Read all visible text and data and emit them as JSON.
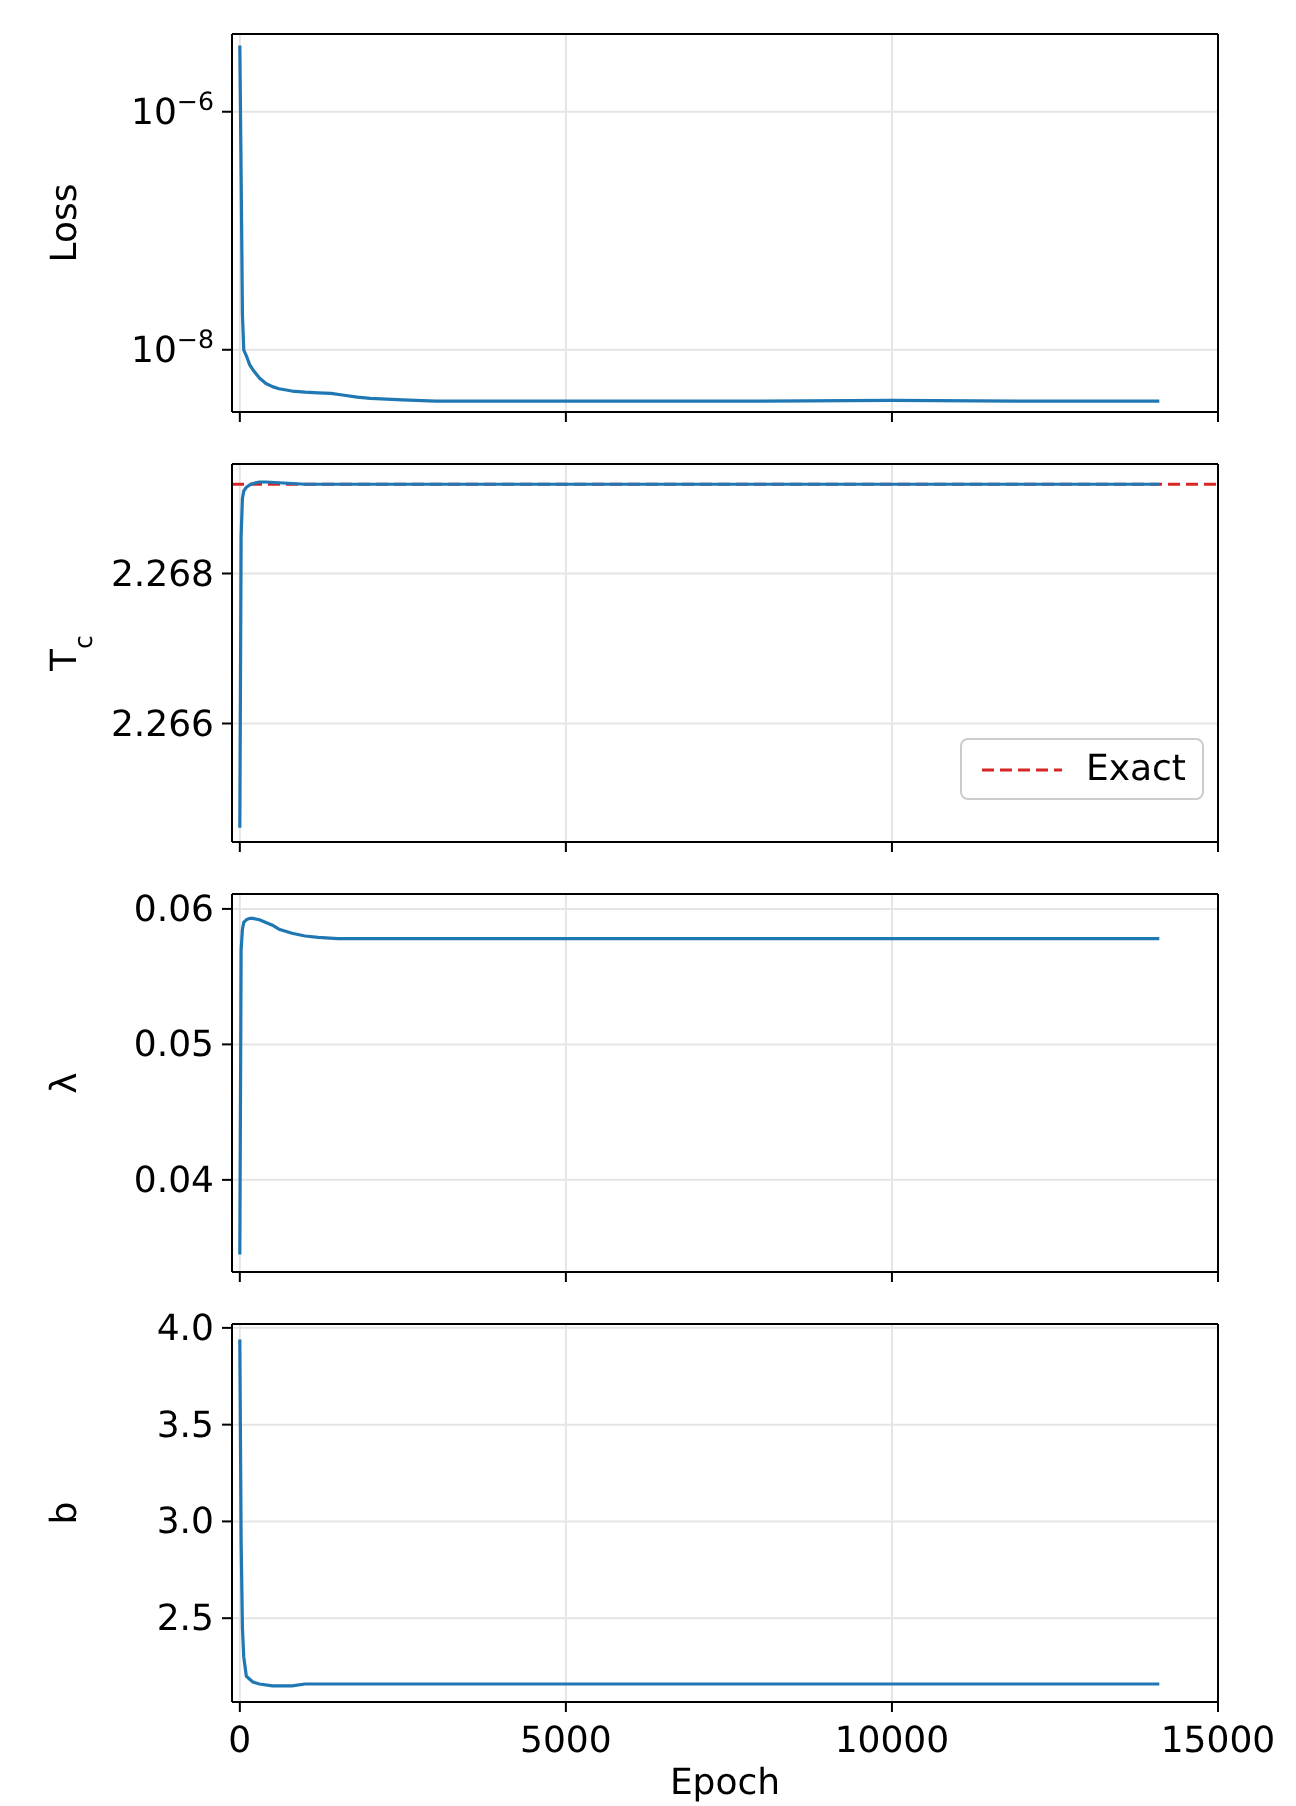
{
  "chart_data": [
    {
      "type": "line",
      "ylabel": "Loss",
      "log": "y",
      "grid": true,
      "tick_labels": "y",
      "xlim": [
        -120,
        15000
      ],
      "xticks": [
        0,
        5000,
        10000,
        15000
      ],
      "ylim": [
        3e-09,
        4.5e-06
      ],
      "yticks": [
        {
          "value": 1e-06,
          "label": "10$^{−6}$"
        },
        {
          "value": 1e-08,
          "label": "10$^{−8}$"
        }
      ],
      "series": [
        {
          "color": "#1f77b4",
          "x": [
            0,
            20,
            40,
            60,
            100,
            150,
            200,
            300,
            400,
            500,
            600,
            800,
            1000,
            1200,
            1400,
            1600,
            1800,
            2000,
            2500,
            3000,
            4000,
            6000,
            8000,
            10000,
            12000,
            14100
          ],
          "values": [
            3.6e-06,
            3e-07,
            2e-08,
            1e-08,
            8.9e-09,
            7.5e-09,
            6.8e-09,
            5.8e-09,
            5.2e-09,
            4.9e-09,
            4.7e-09,
            4.5e-09,
            4.4e-09,
            4.35e-09,
            4.3e-09,
            4.15e-09,
            4e-09,
            3.9e-09,
            3.8e-09,
            3.7e-09,
            3.7e-09,
            3.7e-09,
            3.7e-09,
            3.75e-09,
            3.7e-09,
            3.7e-09
          ]
        }
      ]
    },
    {
      "type": "line",
      "ylabel": "T$_{c}$",
      "grid": true,
      "tick_labels": "y",
      "legend": "bottom right",
      "xlim": [
        -120,
        15000
      ],
      "xticks": [
        0,
        5000,
        10000,
        15000
      ],
      "ylim": [
        2.26442,
        2.26946
      ],
      "yticks": [
        2.266,
        2.268
      ],
      "series": [
        {
          "color": "#1f77b4",
          "x": [
            0,
            20,
            40,
            60,
            100,
            150,
            200,
            300,
            400,
            600,
            800,
            1000,
            2000,
            4000,
            6000,
            8000,
            10000,
            12000,
            14100
          ],
          "values": [
            2.26461,
            2.2685,
            2.269,
            2.2691,
            2.26915,
            2.26918,
            2.2692,
            2.26922,
            2.26922,
            2.26921,
            2.2692,
            2.26919,
            2.26919,
            2.26919,
            2.26919,
            2.26919,
            2.26919,
            2.26919,
            2.26919
          ]
        }
      ],
      "ref_lines": [
        {
          "axis": "y",
          "value": 2.26919,
          "label": "Exact",
          "color": "#d62728",
          "line_style": "dashed"
        }
      ]
    },
    {
      "type": "line",
      "ylabel": "λ",
      "grid": true,
      "tick_labels": "y",
      "xlim": [
        -120,
        15000
      ],
      "xticks": [
        0,
        5000,
        10000,
        15000
      ],
      "ylim": [
        0.0332,
        0.0611
      ],
      "yticks": [
        0.04,
        0.05,
        0.06
      ],
      "series": [
        {
          "color": "#1f77b4",
          "x": [
            0,
            20,
            40,
            60,
            100,
            150,
            200,
            300,
            400,
            500,
            600,
            800,
            1000,
            1200,
            1500,
            2000,
            3000,
            4000,
            5000,
            6000,
            7000,
            8000,
            9000,
            10000,
            11000,
            12000,
            13000,
            14100
          ],
          "values": [
            0.0345,
            0.057,
            0.0585,
            0.059,
            0.0592,
            0.0593,
            0.0593,
            0.0592,
            0.059,
            0.0588,
            0.0585,
            0.0582,
            0.058,
            0.0579,
            0.0578,
            0.0578,
            0.0578,
            0.0578,
            0.0578,
            0.0578,
            0.0578,
            0.0578,
            0.0578,
            0.0578,
            0.0578,
            0.0578,
            0.0578,
            0.0578
          ]
        }
      ]
    },
    {
      "type": "line",
      "xlabel": "Epoch",
      "ylabel": "b",
      "grid": true,
      "xlim": [
        -120,
        15000
      ],
      "xticks": [
        0,
        5000,
        10000,
        15000
      ],
      "ylim": [
        2.067,
        4.02
      ],
      "yticks": [
        2.5,
        {
          "value": 3,
          "label": "3.0"
        },
        3.5,
        {
          "value": 4,
          "label": "4.0"
        }
      ],
      "series": [
        {
          "color": "#1f77b4",
          "x": [
            0,
            20,
            40,
            60,
            100,
            200,
            300,
            500,
            800,
            1000,
            2000,
            4000,
            6000,
            8000,
            10000,
            12000,
            14100
          ],
          "values": [
            3.94,
            2.9,
            2.45,
            2.3,
            2.2,
            2.17,
            2.16,
            2.15,
            2.15,
            2.16,
            2.16,
            2.16,
            2.16,
            2.16,
            2.16,
            2.16,
            2.16
          ]
        }
      ]
    }
  ]
}
